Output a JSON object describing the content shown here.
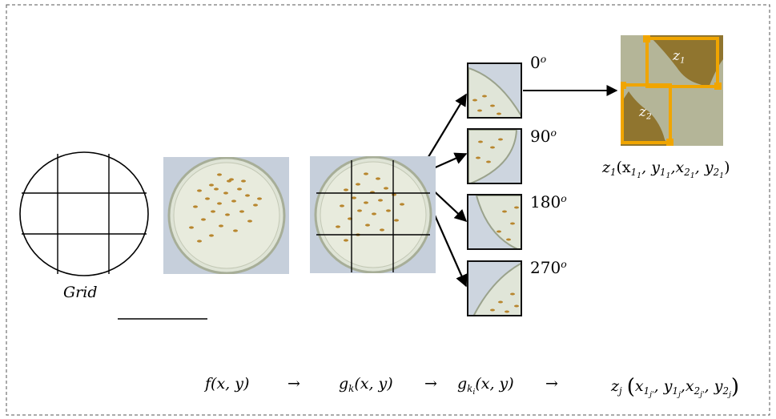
{
  "labels": {
    "grid": "Grid",
    "angles": [
      "0",
      "90",
      "180",
      "270"
    ],
    "angle_unit": "o",
    "z1_tag": "z",
    "z1_sub": "1",
    "z2_tag": "z",
    "z2_sub": "2"
  },
  "coord_label": {
    "lead": "z",
    "lead_sub": "1",
    "body": "(x",
    "a_sub": "1",
    "a_subsub": "1",
    "b": ", y",
    "b_sub": "1",
    "b_subsub": "1",
    "c": ",x",
    "c_sub": "2",
    "c_subsub": "1",
    "d": ", y",
    "d_sub": "2",
    "d_subsub": "1",
    "close": ")"
  },
  "formula": {
    "f": "f(x, y)",
    "arrow1": "→",
    "g": "g",
    "g_sub": "k",
    "g_rest": "(x, y)",
    "arrow2": "→",
    "gk": "g",
    "gk_sub": "k",
    "gk_subsub": "i",
    "gk_rest": "(x, y)",
    "arrow3": "→",
    "z": "z",
    "z_sub": "j",
    "z_open": "(",
    "z_x": "x",
    "z_x_sub": "1",
    "z_x_subsub": "j'",
    "z_y": ", y",
    "z_y_sub": "1",
    "z_y_subsub": "j",
    "z_x2": ",x",
    "z_x2_sub": "2",
    "z_x2_subsub": "j'",
    "z_y2": ", y",
    "z_y2_sub": "2",
    "z_y2_subsub": "j",
    "z_close": ")"
  },
  "colors": {
    "frame": "#555555",
    "box_orange": "#f0a500",
    "dish_bg": "#c9d1dc",
    "seed": "#b8862e",
    "zoom_bg": "#a9a98a",
    "zoom_seed": "#8a6a1c"
  }
}
